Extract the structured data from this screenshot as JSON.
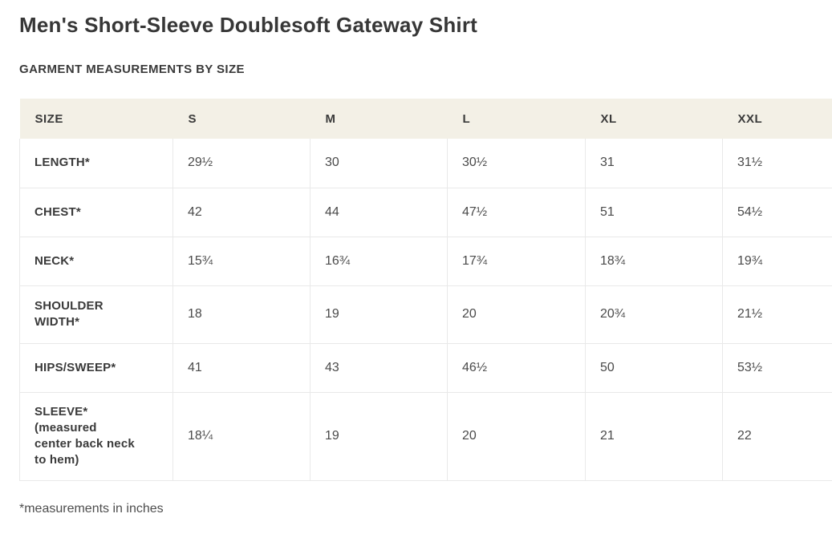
{
  "page": {
    "title": "Men's Short-Sleeve Doublesoft Gateway Shirt",
    "section_heading": "GARMENT MEASUREMENTS BY SIZE",
    "footnote": "*measurements in inches"
  },
  "table": {
    "columns": [
      "SIZE",
      "S",
      "M",
      "L",
      "XL",
      "XXL"
    ],
    "rows": [
      {
        "label": "LENGTH*",
        "values": [
          "29½",
          "30",
          "30½",
          "31",
          "31½"
        ]
      },
      {
        "label": "CHEST*",
        "values": [
          "42",
          "44",
          "47½",
          "51",
          "54½"
        ]
      },
      {
        "label": "NECK*",
        "values": [
          "15¾",
          "16¾",
          "17¾",
          "18¾",
          "19¾"
        ]
      },
      {
        "label": "SHOULDER WIDTH*",
        "values": [
          "18",
          "19",
          "20",
          "20¾",
          "21½"
        ]
      },
      {
        "label": "HIPS/SWEEP*",
        "values": [
          "41",
          "43",
          "46½",
          "50",
          "53½"
        ]
      },
      {
        "label": "SLEEVE* (measured center back neck to hem)",
        "values": [
          "18¼",
          "19",
          "20",
          "21",
          "22"
        ]
      }
    ]
  },
  "colors": {
    "header_background": "#f3f0e6",
    "grid_border": "#e9e9e9",
    "heading_text": "#3a3a3a",
    "value_text": "#4a4a4a"
  }
}
